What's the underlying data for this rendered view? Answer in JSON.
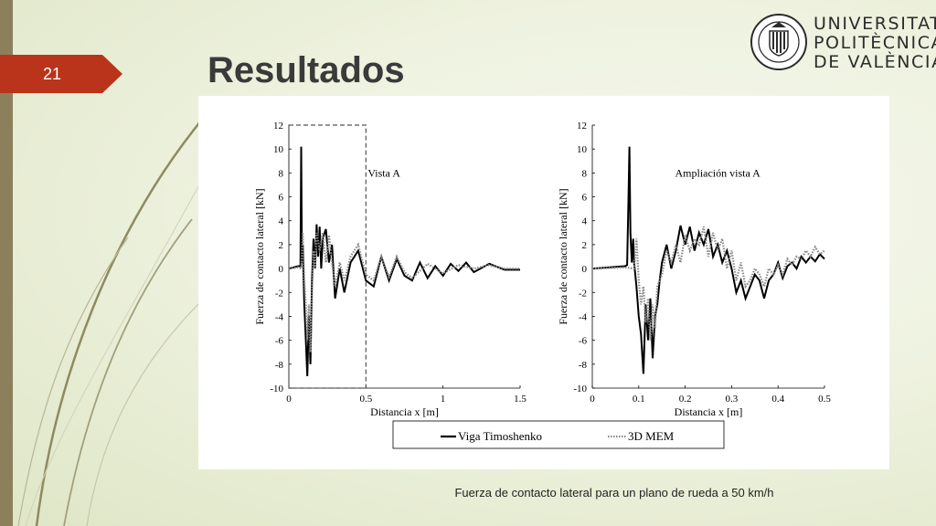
{
  "slide": {
    "number": "21",
    "title": "Resultados"
  },
  "logo": {
    "lines": [
      "UNIVERSITAT",
      "POLITÈCNICA",
      "DE VALÈNCIA"
    ],
    "seal_text": "UNIVERSITAT POLITÈCNICA · VALÈNCIA"
  },
  "caption": "Fuerza de contacto lateral para un plano de rueda a 50 km/h",
  "legend": {
    "series1": "Viga Timoshenko",
    "series2": "3D MEM"
  },
  "chart_data": [
    {
      "type": "line",
      "annotation": "Vista A",
      "xlabel": "Distancia x [m]",
      "ylabel": "Fuerza de contacto lateral [kN]",
      "xlim": [
        0,
        1.5
      ],
      "ylim": [
        -10,
        12
      ],
      "xticks": [
        "0",
        "0.5",
        "1",
        "1.5"
      ],
      "yticks": [
        "-10",
        "-8",
        "-6",
        "-4",
        "-2",
        "0",
        "2",
        "4",
        "6",
        "8",
        "10",
        "12"
      ],
      "series": [
        {
          "name": "Viga Timoshenko",
          "x": [
            0,
            0.06,
            0.075,
            0.08,
            0.085,
            0.09,
            0.1,
            0.11,
            0.12,
            0.13,
            0.14,
            0.15,
            0.16,
            0.17,
            0.18,
            0.19,
            0.2,
            0.21,
            0.22,
            0.24,
            0.26,
            0.28,
            0.3,
            0.33,
            0.36,
            0.4,
            0.45,
            0.5,
            0.55,
            0.6,
            0.65,
            0.7,
            0.75,
            0.8,
            0.85,
            0.9,
            0.95,
            1.0,
            1.05,
            1.1,
            1.15,
            1.2,
            1.3,
            1.4,
            1.5
          ],
          "y": [
            0,
            0.2,
            0.2,
            10.2,
            0.5,
            2.0,
            -3.0,
            -6.0,
            -9.0,
            -4.0,
            -8.0,
            -1.0,
            2.5,
            0.0,
            3.7,
            1.0,
            3.5,
            0.0,
            2.5,
            3.3,
            0.5,
            2.0,
            -2.5,
            0.0,
            -2.0,
            0.5,
            1.5,
            -1.0,
            -1.5,
            1.0,
            -1.0,
            0.8,
            -0.6,
            -1.0,
            0.5,
            -0.8,
            0.2,
            -0.6,
            0.4,
            -0.2,
            0.5,
            -0.3,
            0.4,
            -0.1,
            -0.1
          ]
        },
        {
          "name": "3D MEM",
          "x": [
            0,
            0.06,
            0.08,
            0.09,
            0.1,
            0.11,
            0.12,
            0.13,
            0.14,
            0.15,
            0.16,
            0.17,
            0.18,
            0.2,
            0.22,
            0.24,
            0.26,
            0.28,
            0.3,
            0.33,
            0.36,
            0.4,
            0.45,
            0.5,
            0.55,
            0.6,
            0.65,
            0.7,
            0.75,
            0.8,
            0.9,
            1.0,
            1.1,
            1.2,
            1.3,
            1.4,
            1.5
          ],
          "y": [
            0,
            0.1,
            0.0,
            3.0,
            -1.0,
            -3.0,
            -6.0,
            -3.0,
            -7.0,
            -2.0,
            1.5,
            0.0,
            3.0,
            1.5,
            3.0,
            0.5,
            2.8,
            0.5,
            -1.5,
            0.5,
            -1.0,
            1.0,
            2.0,
            -0.5,
            -1.0,
            1.0,
            -0.7,
            1.0,
            -0.3,
            -0.8,
            0.4,
            -0.4,
            0.3,
            0.0,
            0.3,
            0.0,
            0.0
          ]
        }
      ]
    },
    {
      "type": "line",
      "annotation": "Ampliación vista A",
      "xlabel": "Distancia x [m]",
      "ylabel": "Fuerza de contacto lateral [kN]",
      "xlim": [
        0,
        0.5
      ],
      "ylim": [
        -10,
        12
      ],
      "xticks": [
        "0",
        "0.1",
        "0.2",
        "0.3",
        "0.4",
        "0.5"
      ],
      "yticks": [
        "-10",
        "-8",
        "-6",
        "-4",
        "-2",
        "0",
        "2",
        "4",
        "6",
        "8",
        "10",
        "12"
      ],
      "series": [
        {
          "name": "Viga Timoshenko",
          "x": [
            0,
            0.07,
            0.075,
            0.078,
            0.08,
            0.082,
            0.085,
            0.088,
            0.09,
            0.095,
            0.1,
            0.105,
            0.11,
            0.115,
            0.12,
            0.125,
            0.13,
            0.135,
            0.14,
            0.145,
            0.15,
            0.16,
            0.17,
            0.18,
            0.19,
            0.2,
            0.21,
            0.22,
            0.23,
            0.24,
            0.25,
            0.26,
            0.27,
            0.28,
            0.29,
            0.3,
            0.31,
            0.32,
            0.33,
            0.34,
            0.35,
            0.36,
            0.37,
            0.38,
            0.39,
            0.4,
            0.41,
            0.42,
            0.43,
            0.44,
            0.45,
            0.46,
            0.47,
            0.48,
            0.49,
            0.5
          ],
          "y": [
            0,
            0.2,
            0.3,
            6.0,
            10.2,
            3.0,
            0.5,
            2.5,
            0.5,
            -1.5,
            -4.0,
            -5.5,
            -8.8,
            -3.0,
            -6.0,
            -2.5,
            -7.5,
            -4.0,
            -3.0,
            -1.0,
            0.5,
            2.0,
            0.0,
            1.5,
            3.6,
            2.0,
            3.5,
            1.5,
            3.0,
            2.0,
            3.3,
            1.0,
            2.0,
            0.5,
            1.5,
            0.0,
            -2.0,
            -1.0,
            -2.5,
            -1.5,
            -0.5,
            -1.0,
            -2.5,
            -1.0,
            -0.5,
            0.5,
            -0.8,
            0.2,
            0.5,
            0.0,
            1.0,
            0.5,
            1.0,
            0.6,
            1.2,
            0.8
          ]
        },
        {
          "name": "3D MEM",
          "x": [
            0,
            0.07,
            0.09,
            0.095,
            0.1,
            0.105,
            0.11,
            0.115,
            0.12,
            0.125,
            0.13,
            0.135,
            0.14,
            0.15,
            0.16,
            0.17,
            0.18,
            0.19,
            0.2,
            0.21,
            0.22,
            0.23,
            0.24,
            0.25,
            0.26,
            0.27,
            0.28,
            0.29,
            0.3,
            0.31,
            0.32,
            0.33,
            0.34,
            0.35,
            0.36,
            0.37,
            0.38,
            0.39,
            0.4,
            0.41,
            0.42,
            0.43,
            0.44,
            0.45,
            0.46,
            0.47,
            0.48,
            0.49,
            0.5
          ],
          "y": [
            0,
            0.1,
            0.0,
            2.5,
            -1.0,
            -3.0,
            -1.5,
            -4.5,
            -2.5,
            -6.0,
            -3.0,
            -5.0,
            -1.5,
            -0.5,
            1.5,
            0.5,
            2.0,
            0.5,
            2.8,
            1.5,
            2.5,
            2.0,
            3.5,
            1.0,
            3.0,
            1.5,
            2.5,
            0.0,
            1.5,
            -1.0,
            0.5,
            -1.5,
            -1.0,
            0.0,
            -0.5,
            -1.5,
            0.0,
            -0.5,
            0.3,
            -0.5,
            0.8,
            0.3,
            1.0,
            0.8,
            1.5,
            1.0,
            1.8,
            1.2,
            1.5
          ]
        }
      ]
    }
  ]
}
